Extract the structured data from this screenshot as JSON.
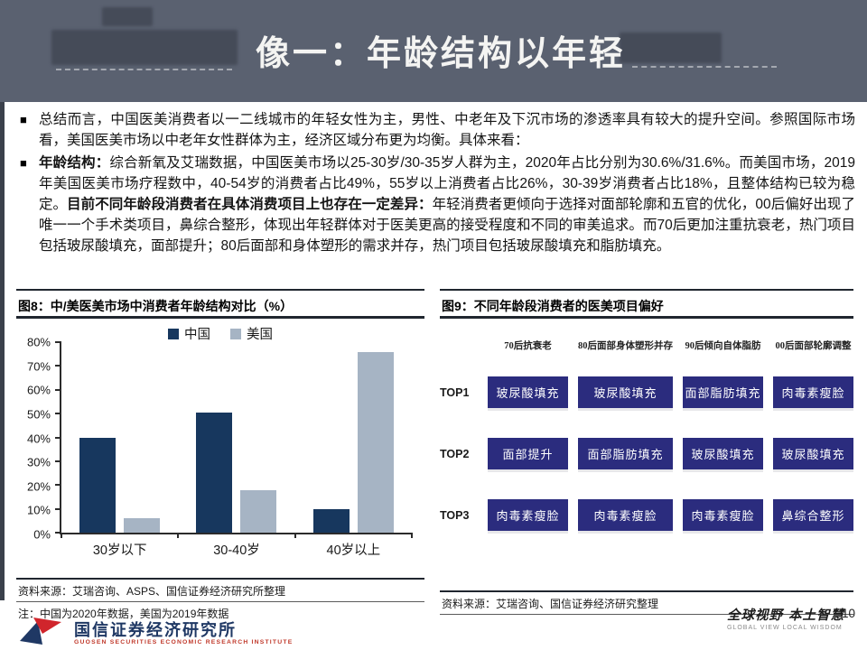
{
  "header": {
    "title": "像一：年龄结构以年轻"
  },
  "bullet_marker": "■",
  "bullets": [
    {
      "segments": [
        {
          "bold": false,
          "text": "总结而言，中国医美消费者以一二线城市的年轻女性为主，男性、中老年及下沉市场的渗透率具有较大的提升空间。参照国际市场看，美国医美市场以中老年女性群体为主，经济区域分布更为均衡。具体来看："
        }
      ]
    },
    {
      "segments": [
        {
          "bold": true,
          "text": "年龄结构："
        },
        {
          "bold": false,
          "text": "综合新氧及艾瑞数据，中国医美市场以25-30岁/30-35岁人群为主，2020年占比分别为30.6%/31.6%。而美国市场，2019年美国医美市场疗程数中，40-54岁的消费者占比49%，55岁以上消费者占比26%，30-39岁消费者占比18%，且整体结构已较为稳定。"
        },
        {
          "bold": true,
          "text": "目前不同年龄段消费者在具体消费项目上也存在一定差异："
        },
        {
          "bold": false,
          "text": "年轻消费者更倾向于选择对面部轮廓和五官的优化，00后偏好出现了唯一一个手术类项目，鼻综合整形，体现出年轻群体对于医美更高的接受程度和不同的审美追求。而70后更加注重抗衰老，热门项目包括玻尿酸填充，面部提升；80后面部和身体塑形的需求并存，热门项目包括玻尿酸填充和脂肪填充。"
        }
      ]
    }
  ],
  "figure8": {
    "title": "图8：中/美医美市场中消费者年龄结构对比（%）",
    "source": "资料来源：艾瑞咨询、ASPS、国信证券经济研究所整理",
    "note": "注：中国为2020年数据，美国为2019年数据"
  },
  "chart_data": {
    "type": "bar",
    "title": "中/美医美市场中消费者年龄结构对比（%）",
    "categories": [
      "30岁以下",
      "30-40岁",
      "40岁以上"
    ],
    "series": [
      {
        "name": "中国",
        "color": "#17375e",
        "values": [
          40,
          50.5,
          10
        ]
      },
      {
        "name": "美国",
        "color": "#a6b4c4",
        "values": [
          6,
          18,
          76
        ]
      }
    ],
    "ylim": [
      0,
      80
    ],
    "ytick_step": 10,
    "ytick_suffix": "%",
    "grid": false,
    "legend_position": "top"
  },
  "figure9": {
    "title": "图9：不同年龄段消费者的医美项目偏好",
    "source": "资料来源：艾瑞咨询、国信证券经济研究整理",
    "cell_color": "#2b2c7e",
    "columns": [
      "70后抗衰老",
      "80后面部身体塑形并存",
      "90后倾向自体脂肪",
      "00后面部轮廓调整"
    ],
    "rows": [
      {
        "label": "TOP1",
        "cells": [
          "玻尿酸填充",
          "玻尿酸填充",
          "面部脂肪填充",
          "肉毒素瘦脸"
        ]
      },
      {
        "label": "TOP2",
        "cells": [
          "面部提升",
          "面部脂肪填充",
          "玻尿酸填充",
          "玻尿酸填充"
        ]
      },
      {
        "label": "TOP3",
        "cells": [
          "肉毒素瘦脸",
          "肉毒素瘦脸",
          "肉毒素瘦脸",
          "鼻综合整形"
        ]
      }
    ]
  },
  "footer": {
    "logo_cn": "国信证券经济研究所",
    "logo_en": "GUOSEN SECURITIES ECONOMIC RESEARCH INSTITUTE",
    "slogan_cn": "全球视野 本土智慧",
    "slogan_en": "GLOBAL VIEW    LOCAL WISDOM",
    "page_number": "10"
  }
}
